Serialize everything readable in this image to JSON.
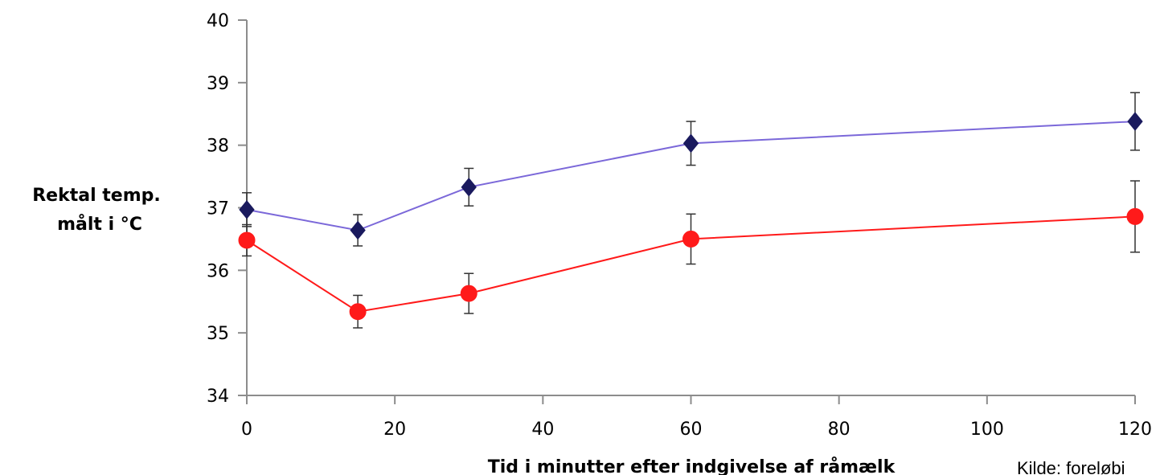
{
  "chart_data": {
    "type": "line",
    "title": "",
    "xlabel": "Tid i minutter efter indgivelse af råmælk",
    "ylabel_lines": [
      "Rektal temp.",
      "målt i °C"
    ],
    "xlim": [
      0,
      120
    ],
    "ylim": [
      34,
      40
    ],
    "x_ticks": [
      0,
      20,
      40,
      60,
      80,
      100,
      120
    ],
    "y_ticks": [
      34,
      35,
      36,
      37,
      38,
      39,
      40
    ],
    "grid": false,
    "legend": "none",
    "series": [
      {
        "color": "#7b68d9",
        "marker": "diamond",
        "marker_color": "#1a1a5e",
        "x": [
          0,
          15,
          30,
          60,
          120
        ],
        "y": [
          36.97,
          36.64,
          37.33,
          38.03,
          38.38
        ],
        "err": [
          0.27,
          0.25,
          0.3,
          0.35,
          0.46
        ]
      },
      {
        "color": "#ff1a1a",
        "marker": "circle",
        "marker_color": "#ff1a1a",
        "x": [
          0,
          15,
          30,
          60,
          120
        ],
        "y": [
          36.48,
          35.34,
          35.63,
          36.5,
          36.86
        ],
        "err": [
          0.25,
          0.26,
          0.32,
          0.4,
          0.57
        ]
      }
    ],
    "annotation": "Kilde: foreløbi"
  }
}
